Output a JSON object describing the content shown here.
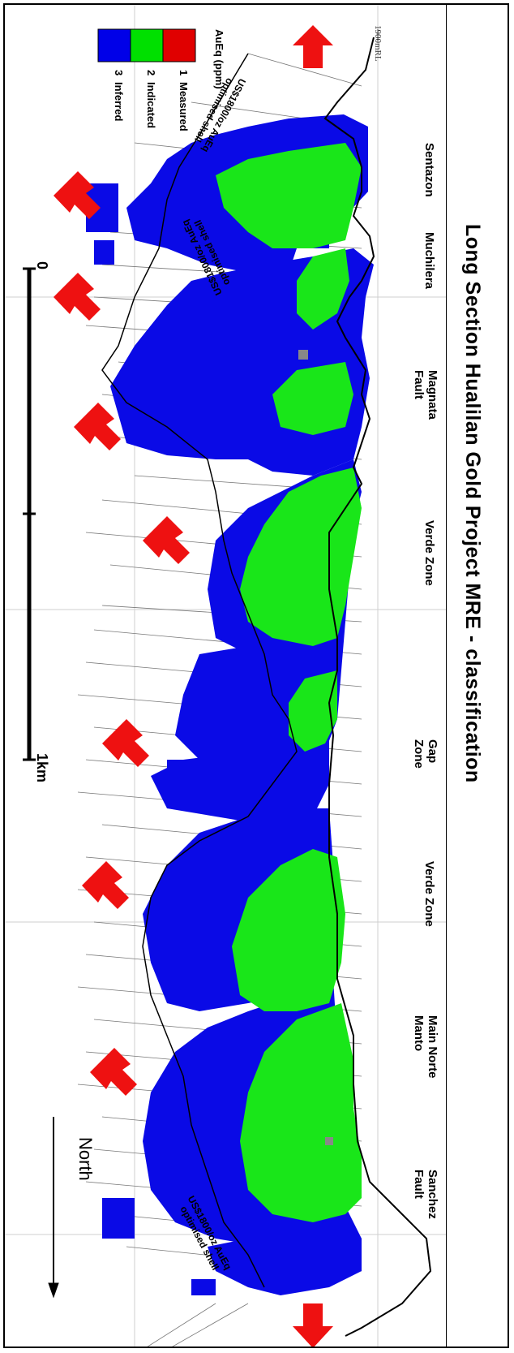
{
  "title": "Long Section Hualilan Gold Project MRE - classification",
  "elevation_label": "1900mRL",
  "legend": {
    "title": "AuEq (ppm)",
    "items": [
      {
        "code": "1",
        "label": "Measured",
        "color": "#e00000"
      },
      {
        "code": "2",
        "label": "Indicated",
        "color": "#00e000"
      },
      {
        "code": "3",
        "label": "Inferred",
        "color": "#0000e8"
      }
    ]
  },
  "zones": [
    "Sentazon",
    "Muchilera",
    "Magnata\nFault",
    "Verde Zone",
    "Gap\nZone",
    "Verde Zone",
    "Main Norte\nManto",
    "Sanchez\nFault"
  ],
  "shell_label": "US$1800/oz AuEq\noptimised shell",
  "scale": {
    "start": "0",
    "end": "1km"
  },
  "north_label": "North",
  "colors": {
    "inferred": "#0a0ae6",
    "indicated": "#19e619",
    "measured": "#e00000",
    "arrow": "#ee1111"
  }
}
